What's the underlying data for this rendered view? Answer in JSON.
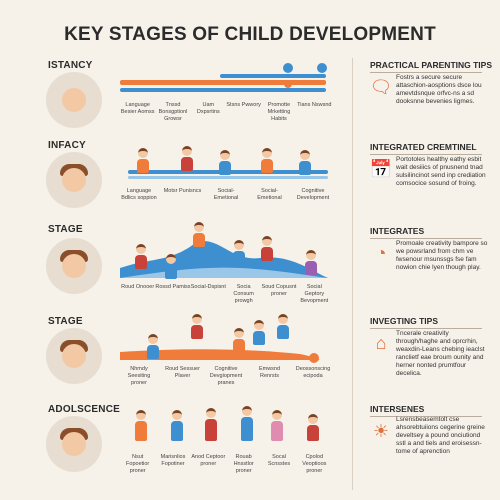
{
  "title": "KEY STAGES OF CHILD DEVELOPMENT",
  "colors": {
    "orange": "#f07c3c",
    "blue": "#3e8fcf",
    "background": "#f6f2ea"
  },
  "stages": [
    {
      "label": "ISTANCY",
      "milestones": [
        "Language Besier Aomss",
        "Tnssd Bonsgptionl Growsr",
        "Uam Dxpsrtins",
        "Stsns Pwwory",
        "Promotte Mrketting Habits",
        "Tians Nswsnd"
      ],
      "tip": {
        "title": "PRACTICAL PARENTING TIPS",
        "icon": "chat-heart-icon",
        "text": "Fostrs a secure secure attaschion-aosptions dsce lou amevtdsnque orfvc-ns a sd dooksnne bevenies ligmes."
      }
    },
    {
      "label": "INFACY",
      "milestones": [
        "Language Bdlics soppion",
        "Motsr Punisncs",
        "Social-Emetional",
        "Social-Emetional",
        "Cognitive Development"
      ],
      "tip": {
        "title": "INTEGRATED CREMTINEL",
        "icon": "calendar-icon",
        "text": "Portotoles healthy eathy esbit wait desiiics of pnusnend tnad sulsilincinot send inp crediation comsocice sosund of froing."
      }
    },
    {
      "label": "STAGE",
      "milestones": [
        "Roud Onooer",
        "Rossd Pamiss",
        "Social-Dspisnt",
        "Socia Consum prowgh",
        "Soud Copusnt proner",
        "Social Geptory Bevopment"
      ],
      "tip": {
        "title": "INTEGRATES",
        "icon": "speedometer-icon",
        "text": "Promoale creativity bampore so we powsrland from chm ve fwsenour msunssgs fse fam nowion chie lyen though play."
      }
    },
    {
      "label": "STAGE",
      "milestones": [
        "Nhmdy Seesiting proner",
        "Roud Sessuer Plaver",
        "Cognitive Devgiopment pranes",
        "Emwsnd Renrsts",
        "Deossonscing ecipoda"
      ],
      "tip": {
        "title": "INVEGTING TIPS",
        "icon": "house-icon",
        "text": "Tncerale creativity through/haghe and oprcrhin, weaxdin-Leans chebing ieaclst ranclietf eae broum ounity and herner nonted prumtfour decelica."
      }
    },
    {
      "label": "ADOLSCENCE",
      "milestones": [
        "Nsut Fopoetior proner",
        "Marisnlios Fopotiner",
        "Anod Ceptoor proner",
        "Rouab Hnsstlor proner",
        "Socal Scnsstes",
        "Cpolod Veoptioos proner"
      ],
      "tip": {
        "title": "INTERSENES",
        "icon": "lightbulb-icon",
        "text": "Lsrensbeasemtolt cse ahsorebtuiions cegerine greine develtsey a pound onciutiond sstl a and tiels and eroisessn-tome of aprenction"
      }
    }
  ]
}
